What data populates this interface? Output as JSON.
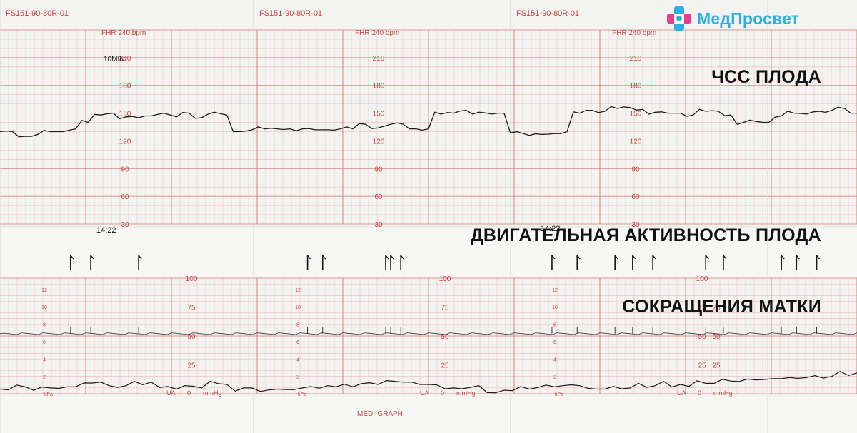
{
  "brand": {
    "name": "МедПросвет",
    "color_cyan": "#2bb0e0",
    "color_magenta": "#e83e8c"
  },
  "paper_id": "FS151-90-80R-01",
  "fhr_header": "FHR 240 bpm",
  "fhr_ticks": [
    "210",
    "180",
    "150",
    "120",
    "90",
    "60",
    "30"
  ],
  "ua_ticks": [
    "100",
    "75",
    "50",
    "25"
  ],
  "kpa_ticks": [
    "12",
    "10",
    "8",
    "6",
    "4",
    "2"
  ],
  "kpa_unit": "kPa",
  "ua_label": "UA",
  "ua_zero": "0",
  "ua_unit": "mmHg",
  "speed_note": "10MIN",
  "time_marks": [
    "14:22",
    "14:22"
  ],
  "footer": "MEDI-GRAPH",
  "annotations": {
    "fhr": "ЧСС ПЛОДА",
    "movement": "ДВИГАТЕЛЬНАЯ АКТИВНОСТЬ ПЛОДА",
    "contractions": "СОКРАЩЕНИЯ МАТКИ"
  },
  "colors": {
    "paper": "#f3f3f1",
    "grid_major": "#d9766f",
    "grid_minor": "#efb9b4",
    "label": "#c8453e",
    "trace": "#1a1a1a"
  },
  "chart_data": {
    "type": "line",
    "x_unit": "min",
    "series": [
      {
        "x": [
          0,
          0.5,
          1,
          1.5,
          2,
          2.5,
          3,
          3.5,
          4,
          4.5,
          5,
          5.5,
          6,
          6.5,
          7,
          7.5,
          8,
          8.5,
          9,
          9.5,
          10,
          10.5,
          11,
          11.5,
          12,
          12.5,
          13,
          13.5,
          14,
          14.5,
          15,
          15.5,
          16,
          16.5,
          17,
          17.5,
          18,
          18.5,
          19,
          19.5,
          20,
          20.5,
          21,
          21.5,
          22,
          22.5,
          23,
          23.5,
          24,
          24.5,
          25,
          25.5,
          26,
          26.5,
          27,
          27.5,
          28,
          28.5,
          29,
          29.5,
          30,
          30.5,
          31,
          31.5,
          32,
          32.5,
          33,
          33.5,
          34
        ],
        "values": [
          130,
          130,
          125,
          127,
          130,
          130,
          133,
          140,
          148,
          150,
          146,
          145,
          147,
          150,
          146,
          150,
          145,
          151,
          148,
          130,
          132,
          133,
          133,
          133,
          133,
          132,
          132,
          133,
          133,
          138,
          134,
          138,
          138,
          133,
          133,
          149,
          150,
          153,
          151,
          149,
          150,
          130,
          126,
          127,
          128,
          130,
          150,
          153,
          152,
          155,
          156,
          154,
          151,
          150,
          150,
          148,
          152,
          152,
          148,
          140,
          141,
          140,
          147,
          150,
          149,
          152,
          153,
          155,
          150
        ]
      },
      {
        "x": [
          0,
          1,
          2,
          3,
          4,
          5,
          6,
          7,
          8,
          9,
          10,
          11,
          12,
          13,
          14,
          15,
          16,
          17,
          18,
          19,
          20,
          21,
          22,
          23,
          24,
          25,
          26,
          27,
          28,
          29,
          30,
          31,
          32,
          33,
          34
        ],
        "values": [
          4,
          6,
          5,
          6,
          10,
          7,
          10,
          4,
          5,
          8,
          5,
          4,
          5,
          7,
          6,
          8,
          10,
          8,
          5,
          7,
          3,
          4,
          6,
          7,
          4,
          5,
          7,
          8,
          9,
          11,
          12,
          13,
          14,
          15,
          18
        ]
      }
    ],
    "fhr_ylim": [
      30,
      240
    ],
    "ua_ylim": [
      0,
      100
    ],
    "movement_marks_min": [
      2.8,
      3.6,
      5.5,
      12.2,
      12.8,
      15.3,
      15.5,
      15.9,
      21.9,
      22.9,
      24.4,
      25.1,
      25.9,
      28.0,
      28.7,
      31.0,
      31.6,
      32.4
    ],
    "grid": true
  }
}
